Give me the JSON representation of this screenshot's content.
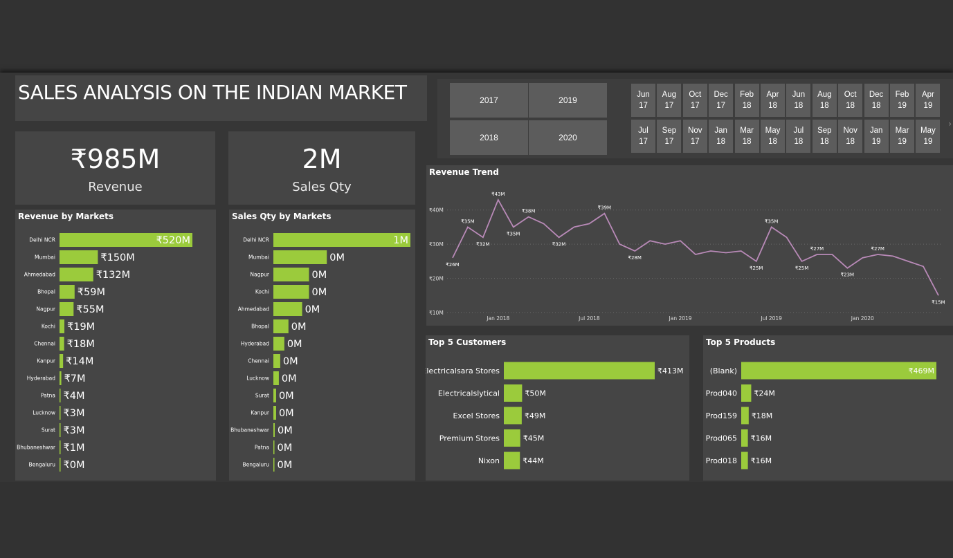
{
  "title": "SALES ANALYSIS ON THE INDIAN MARKET",
  "kpis": [
    {
      "value": "₹985M",
      "label": "Revenue"
    },
    {
      "value": "2M",
      "label": "Sales Qty"
    }
  ],
  "year_slicer": [
    "2017",
    "2019",
    "2018",
    "2020"
  ],
  "month_slicer": {
    "top": [
      [
        "Jun",
        "17"
      ],
      [
        "Aug",
        "17"
      ],
      [
        "Oct",
        "17"
      ],
      [
        "Dec",
        "17"
      ],
      [
        "Feb",
        "18"
      ],
      [
        "Apr",
        "18"
      ],
      [
        "Jun",
        "18"
      ],
      [
        "Aug",
        "18"
      ],
      [
        "Oct",
        "18"
      ],
      [
        "Dec",
        "18"
      ],
      [
        "Feb",
        "19"
      ],
      [
        "Apr",
        "19"
      ]
    ],
    "bottom": [
      [
        "Jul",
        "17"
      ],
      [
        "Sep",
        "17"
      ],
      [
        "Nov",
        "17"
      ],
      [
        "Jan",
        "18"
      ],
      [
        "Mar",
        "18"
      ],
      [
        "May",
        "18"
      ],
      [
        "Jul",
        "18"
      ],
      [
        "Sep",
        "18"
      ],
      [
        "Nov",
        "18"
      ],
      [
        "Jan",
        "19"
      ],
      [
        "Mar",
        "19"
      ],
      [
        "May",
        "19"
      ]
    ]
  },
  "colors": {
    "bar": "#9bcb3c",
    "line": "#b98ab8",
    "panel": "#454545",
    "background": "#363636"
  },
  "chart_data": [
    {
      "type": "bar",
      "orientation": "horizontal",
      "title": "Revenue by Markets",
      "categories": [
        "Delhi NCR",
        "Mumbai",
        "Ahmedabad",
        "Bhopal",
        "Nagpur",
        "Kochi",
        "Chennai",
        "Kanpur",
        "Hyderabad",
        "Patna",
        "Lucknow",
        "Surat",
        "Bhubaneshwar",
        "Bengaluru"
      ],
      "values": [
        520,
        150,
        132,
        59,
        55,
        19,
        18,
        14,
        7,
        4,
        3,
        3,
        1,
        0
      ],
      "labels": [
        "₹520M",
        "₹150M",
        "₹132M",
        "₹59M",
        "₹55M",
        "₹19M",
        "₹18M",
        "₹14M",
        "₹7M",
        "₹4M",
        "₹3M",
        "₹3M",
        "₹1M",
        "₹0M"
      ],
      "unit": "₹M"
    },
    {
      "type": "bar",
      "orientation": "horizontal",
      "title": "Sales Qty by Markets",
      "categories": [
        "Delhi NCR",
        "Mumbai",
        "Nagpur",
        "Kochi",
        "Ahmedabad",
        "Bhopal",
        "Hyderabad",
        "Chennai",
        "Lucknow",
        "Surat",
        "Kanpur",
        "Bhubaneshwar",
        "Patna",
        "Bengaluru"
      ],
      "values": [
        1.0,
        0.39,
        0.26,
        0.26,
        0.21,
        0.11,
        0.08,
        0.05,
        0.04,
        0.02,
        0.02,
        0.01,
        0.005,
        0.003
      ],
      "labels": [
        "1M",
        "0M",
        "0M",
        "0M",
        "0M",
        "0M",
        "0M",
        "0M",
        "0M",
        "0M",
        "0M",
        "0M",
        "0M",
        "0M"
      ],
      "unit": "M"
    },
    {
      "type": "line",
      "title": "Revenue Trend",
      "x": [
        "2017-10",
        "2017-11",
        "2017-12",
        "2018-01",
        "2018-02",
        "2018-03",
        "2018-04",
        "2018-05",
        "2018-06",
        "2018-07",
        "2018-08",
        "2018-09",
        "2018-10",
        "2018-11",
        "2018-12",
        "2019-01",
        "2019-02",
        "2019-03",
        "2019-04",
        "2019-05",
        "2019-06",
        "2019-07",
        "2019-08",
        "2019-09",
        "2019-10",
        "2019-11",
        "2019-12",
        "2020-01",
        "2020-02",
        "2020-03",
        "2020-04",
        "2020-05",
        "2020-06"
      ],
      "y": [
        26,
        35,
        32,
        43,
        35,
        38,
        36,
        32,
        35,
        36,
        39,
        30,
        28,
        31,
        30,
        31,
        27,
        28,
        27.5,
        28,
        25,
        35,
        32,
        25,
        27,
        27,
        23,
        26,
        27,
        26.5,
        25,
        23.5,
        15
      ],
      "point_labels": [
        {
          "i": 0,
          "text": "₹26M",
          "pos": "below"
        },
        {
          "i": 1,
          "text": "₹35M",
          "pos": "above"
        },
        {
          "i": 2,
          "text": "₹32M",
          "pos": "below"
        },
        {
          "i": 3,
          "text": "₹43M",
          "pos": "above"
        },
        {
          "i": 4,
          "text": "₹35M",
          "pos": "below"
        },
        {
          "i": 5,
          "text": "₹38M",
          "pos": "above"
        },
        {
          "i": 7,
          "text": "₹32M",
          "pos": "below"
        },
        {
          "i": 10,
          "text": "₹39M",
          "pos": "above"
        },
        {
          "i": 12,
          "text": "₹28M",
          "pos": "below"
        },
        {
          "i": 20,
          "text": "₹25M",
          "pos": "below"
        },
        {
          "i": 21,
          "text": "₹35M",
          "pos": "above"
        },
        {
          "i": 23,
          "text": "₹25M",
          "pos": "below"
        },
        {
          "i": 24,
          "text": "₹27M",
          "pos": "above"
        },
        {
          "i": 26,
          "text": "₹23M",
          "pos": "below"
        },
        {
          "i": 28,
          "text": "₹27M",
          "pos": "above"
        },
        {
          "i": 32,
          "text": "₹15M",
          "pos": "below"
        }
      ],
      "yticks": [
        {
          "v": 40,
          "label": "₹40M"
        },
        {
          "v": 30,
          "label": "₹30M"
        },
        {
          "v": 20,
          "label": "₹20M"
        },
        {
          "v": 10,
          "label": "₹10M"
        }
      ],
      "xticks": [
        {
          "i": 3,
          "label": "Jan 2018"
        },
        {
          "i": 9,
          "label": "Jul 2018"
        },
        {
          "i": 15,
          "label": "Jan 2019"
        },
        {
          "i": 21,
          "label": "Jul 2019"
        },
        {
          "i": 27,
          "label": "Jan 2020"
        }
      ],
      "ylim": [
        10,
        45
      ],
      "grid": true
    },
    {
      "type": "bar",
      "orientation": "horizontal",
      "title": "Top 5 Customers",
      "categories": [
        "Electricalsara Stores",
        "Electricalslytical",
        "Excel Stores",
        "Premium Stores",
        "Nixon"
      ],
      "values": [
        413,
        50,
        49,
        45,
        44
      ],
      "labels": [
        "₹413M",
        "₹50M",
        "₹49M",
        "₹45M",
        "₹44M"
      ],
      "unit": "₹M"
    },
    {
      "type": "bar",
      "orientation": "horizontal",
      "title": "Top 5 Products",
      "categories": [
        "(Blank)",
        "Prod040",
        "Prod159",
        "Prod065",
        "Prod018"
      ],
      "values": [
        469,
        24,
        18,
        16,
        16
      ],
      "labels": [
        "₹469M",
        "₹24M",
        "₹18M",
        "₹16M",
        "₹16M"
      ],
      "unit": "₹M"
    }
  ]
}
